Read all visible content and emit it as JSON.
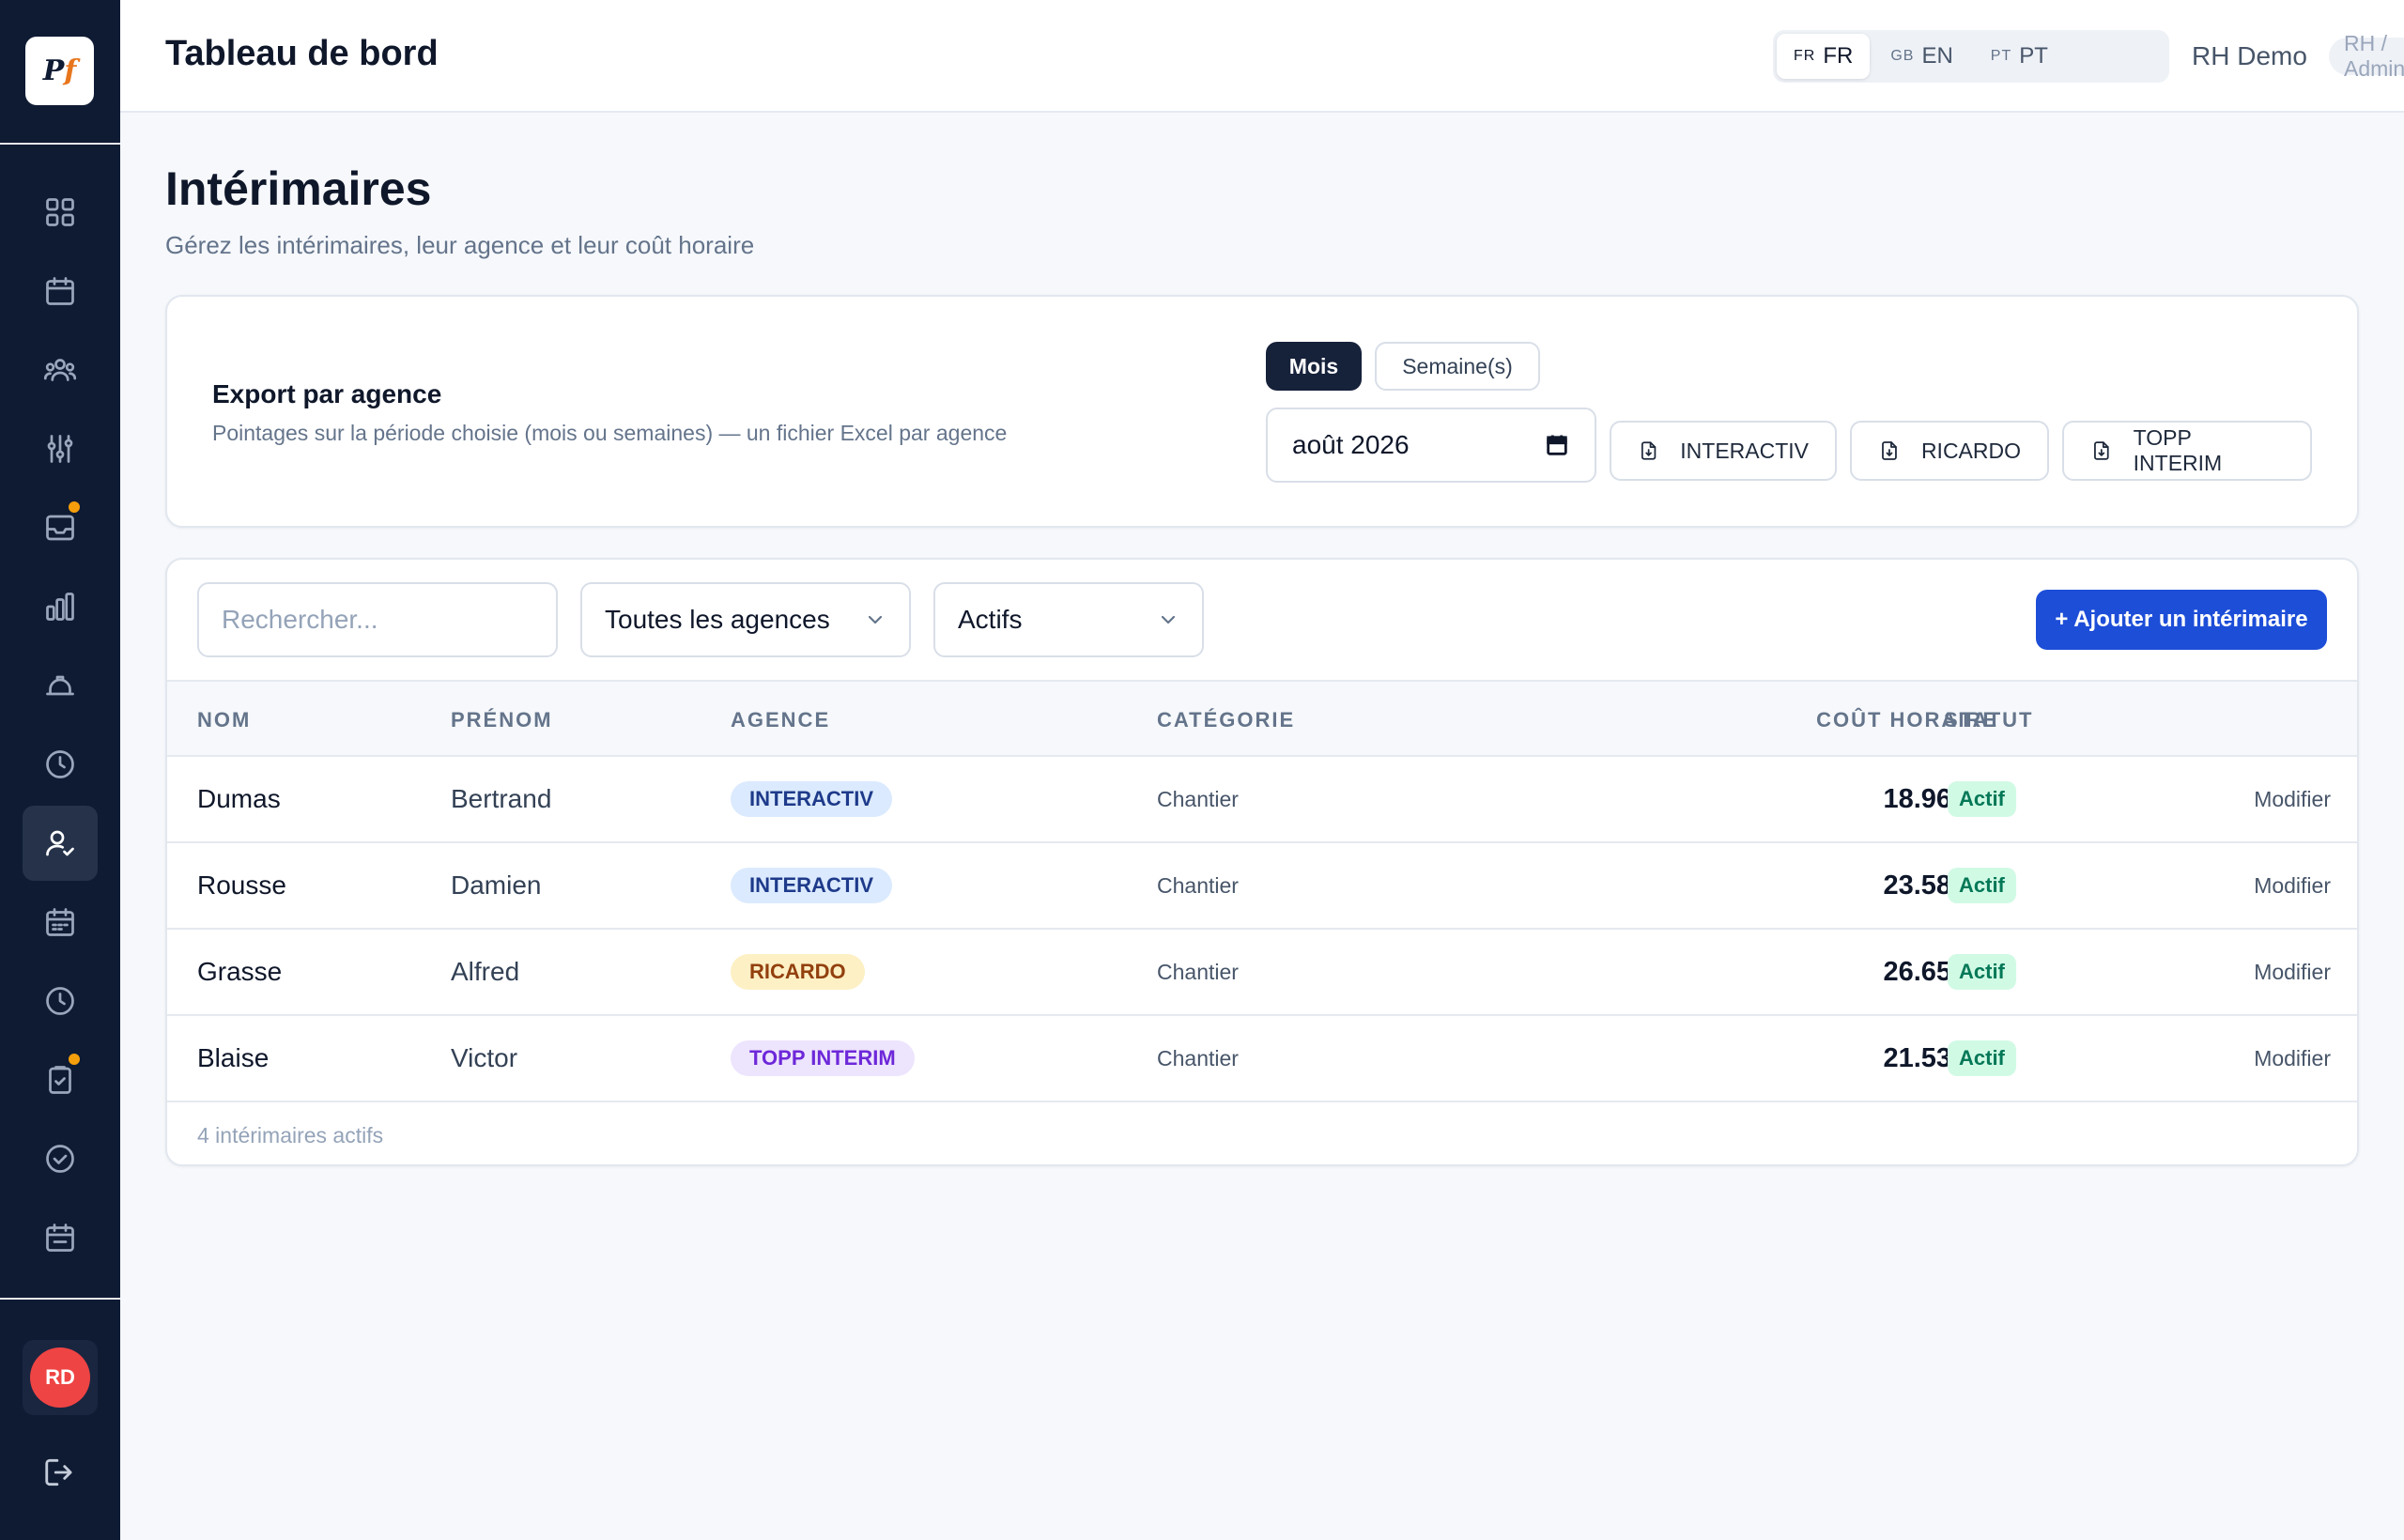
{
  "app": {
    "logo_text": "Pf"
  },
  "header": {
    "title": "Tableau de bord",
    "languages": [
      {
        "code": "FR",
        "country": "FR",
        "active": true
      },
      {
        "code": "EN",
        "country": "GB",
        "active": false
      },
      {
        "code": "PT",
        "country": "PT",
        "active": false
      }
    ],
    "user_name": "RH Demo",
    "role": "RH / Admin"
  },
  "sidebar": {
    "items": [
      {
        "icon": "grid-icon",
        "active": false,
        "badge": false
      },
      {
        "icon": "calendar-icon",
        "active": false,
        "badge": false
      },
      {
        "icon": "users-icon",
        "active": false,
        "badge": false
      },
      {
        "icon": "sliders-icon",
        "active": false,
        "badge": false
      },
      {
        "icon": "inbox-icon",
        "active": false,
        "badge": true
      },
      {
        "icon": "bar-chart-icon",
        "active": false,
        "badge": false
      },
      {
        "icon": "hard-hat-icon",
        "active": false,
        "badge": false
      },
      {
        "icon": "clock-icon",
        "active": false,
        "badge": false
      },
      {
        "icon": "user-check-icon",
        "active": true,
        "badge": false
      },
      {
        "icon": "calendar-grid-icon",
        "active": false,
        "badge": false
      },
      {
        "icon": "clock-icon",
        "active": false,
        "badge": false
      },
      {
        "icon": "clipboard-check-icon",
        "active": false,
        "badge": true
      },
      {
        "icon": "check-circle-icon",
        "active": false,
        "badge": false
      },
      {
        "icon": "calendar-days-icon",
        "active": false,
        "badge": false
      }
    ],
    "avatar_initials": "RD",
    "logout_icon": "logout-icon",
    "badge_color": "#f59e0b"
  },
  "page": {
    "title": "Intérimaires",
    "subtitle": "Gérez les intérimaires, leur agence et leur coût horaire"
  },
  "export": {
    "title": "Export par agence",
    "description": "Pointages sur la période choisie (mois ou semaines) — un fichier Excel par agence",
    "period_modes": [
      {
        "label": "Mois",
        "active": true
      },
      {
        "label": "Semaine(s)",
        "active": false
      }
    ],
    "month_value": "août 2026",
    "agency_buttons": [
      "INTERACTIV",
      "RICARDO",
      "TOPP INTERIM"
    ]
  },
  "filters": {
    "search_placeholder": "Rechercher...",
    "agency_select": "Toutes les agences",
    "status_select": "Actifs",
    "add_button": "+ Ajouter un intérimaire"
  },
  "table": {
    "columns": [
      "NOM",
      "PRÉNOM",
      "AGENCE",
      "CATÉGORIE",
      "COÛT HORAIRE",
      "STATUT"
    ],
    "rows": [
      {
        "nom": "Dumas",
        "prenom": "Bertrand",
        "agence": "INTERACTIV",
        "categorie": "Chantier",
        "cout": "18.96 €/h",
        "statut": "Actif",
        "action": "Modifier"
      },
      {
        "nom": "Rousse",
        "prenom": "Damien",
        "agence": "INTERACTIV",
        "categorie": "Chantier",
        "cout": "23.58 €/h",
        "statut": "Actif",
        "action": "Modifier"
      },
      {
        "nom": "Grasse",
        "prenom": "Alfred",
        "agence": "RICARDO",
        "categorie": "Chantier",
        "cout": "26.65 €/h",
        "statut": "Actif",
        "action": "Modifier"
      },
      {
        "nom": "Blaise",
        "prenom": "Victor",
        "agence": "TOPP INTERIM",
        "categorie": "Chantier",
        "cout": "21.53 €/h",
        "statut": "Actif",
        "action": "Modifier"
      }
    ],
    "footer": "4 intérimaires actifs"
  },
  "colors": {
    "sidebar_bg": "#0f1b33",
    "primary": "#1d4ed8",
    "agency_interactiv": {
      "bg": "#dbeafe",
      "fg": "#1e3a8a"
    },
    "agency_ricardo": {
      "bg": "#fdf0c4",
      "fg": "#92400e"
    },
    "agency_topp": {
      "bg": "#ede4fd",
      "fg": "#6d28d9"
    },
    "status_active": {
      "bg": "#d1fae5",
      "fg": "#047857"
    }
  }
}
